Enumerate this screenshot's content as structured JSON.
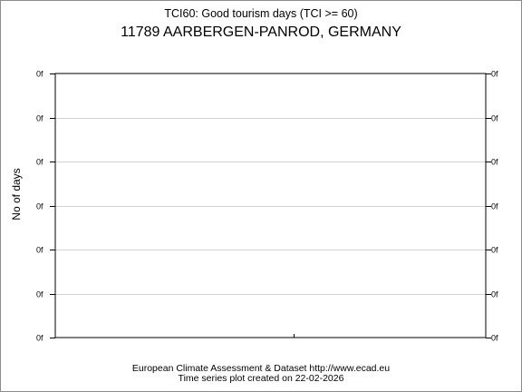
{
  "chart_data": {
    "type": "line",
    "title": "TCI60: Good tourism days (TCI >= 60)",
    "subtitle": "11789 AARBERGEN-PANROD, GERMANY",
    "xlabel": "",
    "ylabel": "No of days",
    "y_tick_labels": [
      "0f",
      "0f",
      "0f",
      "0f",
      "0f",
      "0f",
      "0f"
    ],
    "x_tick_labels": [],
    "series": [],
    "grid": true,
    "legend": "none"
  },
  "footer": {
    "line1": "European Climate Assessment & Dataset  http://www.ecad.eu",
    "line2": "Time series plot created on 22-02-2026"
  },
  "colors": {
    "axis": "#000000",
    "grid": "#d3d3d3",
    "border": "#8c8c8c"
  }
}
